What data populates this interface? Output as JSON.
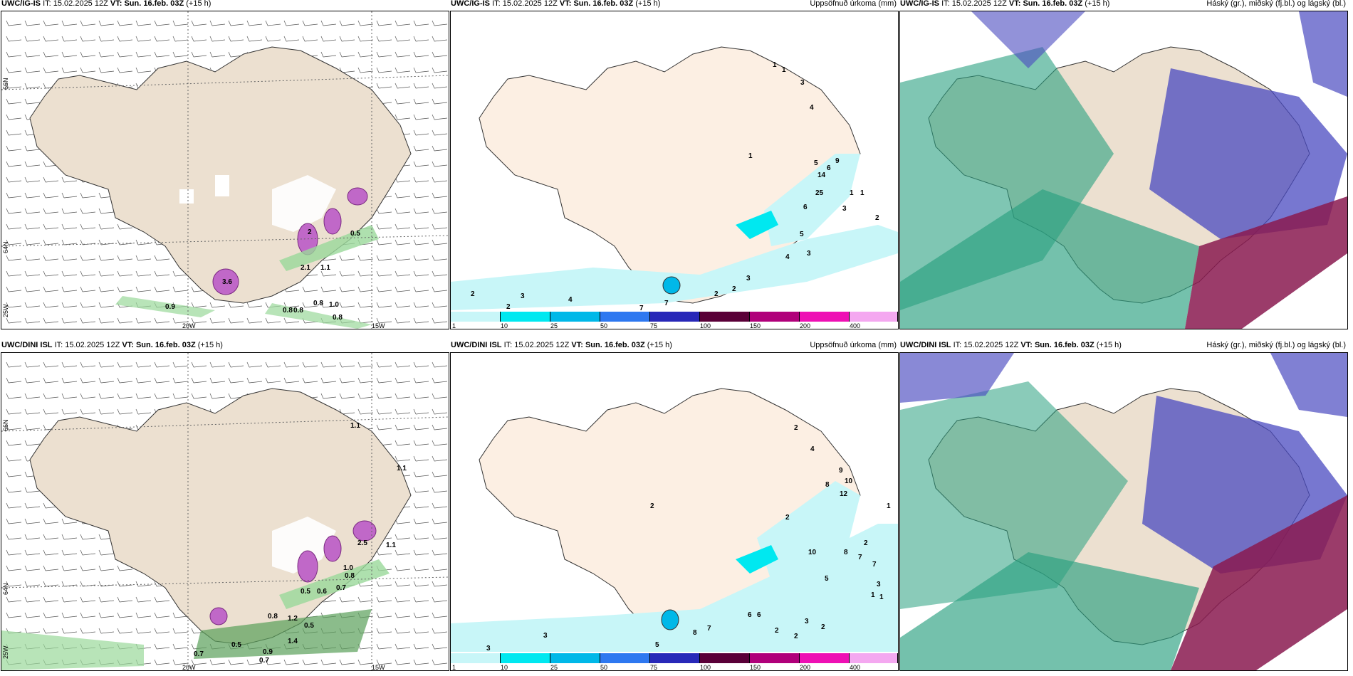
{
  "rows": [
    {
      "model": "UWC/IG-IS",
      "it_label": "IT:",
      "it_value": "15.02.2025 12Z",
      "vt_label": "VT:",
      "vt_value": "Sun. 16.feb. 03Z",
      "lead": "(+15 h)",
      "wind_values": [
        "3.6",
        "2",
        "2.1",
        "0.5",
        "1.1",
        "0.8",
        "0.8",
        "0.8",
        "0.9",
        "1.0",
        "0.8"
      ],
      "precip_values": [
        "1",
        "1",
        "3",
        "4",
        "1",
        "5",
        "6",
        "9",
        "14",
        "25",
        "6",
        "3",
        "2",
        "5",
        "4",
        "3",
        "3",
        "2",
        "2",
        "7",
        "7",
        "4",
        "3",
        "2",
        "2",
        "1",
        "1"
      ]
    },
    {
      "model": "UWC/DINI ISL",
      "it_label": "IT:",
      "it_value": "15.02.2025 12Z",
      "vt_label": "VT:",
      "vt_value": "Sun. 16.feb. 03Z",
      "lead": "(+15 h)",
      "wind_values": [
        "1.1",
        "1.1",
        "1.1",
        "2.5",
        "1.0",
        "0.8",
        "0.7",
        "0.5",
        "0.6",
        "0.8",
        "1.2",
        "0.5",
        "0.5",
        "0.9",
        "0.7",
        "0.7",
        "1.4"
      ],
      "precip_values": [
        "2",
        "4",
        "9",
        "10",
        "12",
        "8",
        "2",
        "2",
        "10",
        "8",
        "7",
        "7",
        "5",
        "2",
        "1",
        "1",
        "3",
        "6",
        "6",
        "3",
        "2",
        "2",
        "2",
        "8",
        "7",
        "5",
        "3",
        "3",
        "1"
      ]
    }
  ],
  "precip_title": "Uppsöfnuð úrkoma (mm)",
  "cloud_title": "Háský (gr.), miðský (fj.bl.) og lágský (bl.)",
  "legend": {
    "ticks": [
      "1",
      "10",
      "25",
      "50",
      "75",
      "100",
      "150",
      "200",
      "400"
    ],
    "colors": [
      "#c8f6f8",
      "#00e8f0",
      "#00b8e8",
      "#2e78f0",
      "#2828b8",
      "#5a0038",
      "#b0007a",
      "#ee10b4",
      "#f4a8f0"
    ]
  },
  "lon_labels": [
    "20W",
    "15W"
  ],
  "lat_labels": [
    "66N",
    "64N",
    "25W"
  ],
  "colors": {
    "land": "#ece0d0",
    "land_precip": "#fcefe3",
    "snow": "#ffffff",
    "ocean": "#ffffff",
    "high_cloud": "#2aa080",
    "mid_cloud": "#4a4ac0",
    "low_cloud": "#8a1a50"
  }
}
